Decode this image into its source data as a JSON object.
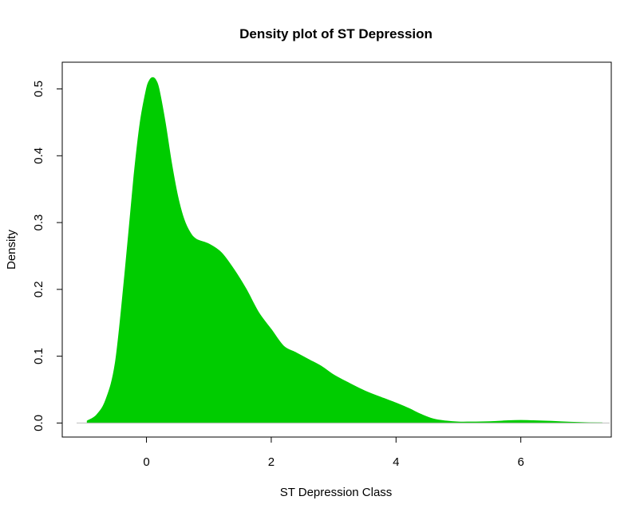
{
  "chart_data": {
    "type": "area",
    "title": "Density plot of ST Depression",
    "xlabel": "ST Depression Class",
    "ylabel": "Density",
    "xlim": [
      -1.35,
      7.45
    ],
    "ylim": [
      -0.021,
      0.54
    ],
    "x_ticks": [
      0,
      2,
      4,
      6
    ],
    "y_ticks": [
      0.0,
      0.1,
      0.2,
      0.3,
      0.4,
      0.5
    ],
    "x_tick_labels": [
      "0",
      "2",
      "4",
      "6"
    ],
    "y_tick_labels": [
      "0.0",
      "0.1",
      "0.2",
      "0.3",
      "0.4",
      "0.5"
    ],
    "fill_color": "#00cc00",
    "grid": false,
    "series": [
      {
        "x": [
          -0.95,
          -0.8,
          -0.65,
          -0.5,
          -0.35,
          -0.2,
          -0.1,
          0.0,
          0.05,
          0.1,
          0.15,
          0.2,
          0.3,
          0.4,
          0.5,
          0.6,
          0.7,
          0.8,
          1.0,
          1.2,
          1.4,
          1.6,
          1.8,
          2.0,
          2.2,
          2.4,
          2.6,
          2.8,
          3.0,
          3.2,
          3.5,
          3.8,
          4.0,
          4.2,
          4.4,
          4.6,
          4.8,
          5.0,
          5.2,
          5.5,
          5.8,
          6.0,
          6.2,
          6.5,
          6.8,
          7.1,
          7.3
        ],
        "y": [
          0.003,
          0.012,
          0.035,
          0.09,
          0.22,
          0.37,
          0.45,
          0.5,
          0.513,
          0.517,
          0.513,
          0.5,
          0.45,
          0.39,
          0.34,
          0.305,
          0.285,
          0.275,
          0.268,
          0.255,
          0.23,
          0.2,
          0.165,
          0.14,
          0.115,
          0.105,
          0.095,
          0.085,
          0.072,
          0.062,
          0.048,
          0.037,
          0.03,
          0.022,
          0.013,
          0.006,
          0.003,
          0.0015,
          0.0015,
          0.002,
          0.0035,
          0.004,
          0.0035,
          0.0025,
          0.0012,
          0.0004,
          0.0001
        ]
      }
    ]
  }
}
